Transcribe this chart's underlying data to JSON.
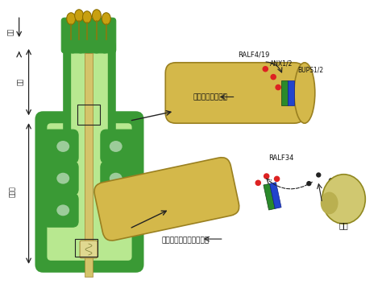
{
  "bg_color": "#ffffff",
  "pistil": {
    "body_color": "#3a9a35",
    "body_light_color": "#7ac060",
    "inner_color": "#b8e890",
    "style_color": "#b8e890",
    "stigma_color": "#3a9a35",
    "ovary_color": "#7ac060",
    "tube_color": "#d4c46a"
  },
  "pollen_tube_color": "#d4b84a",
  "labels": {
    "zhutou": "柱头",
    "huazhu": "花柱",
    "zifangjing": "子房室",
    "ralf419": "RALF4/19",
    "anx12": "ANX1/2",
    "bups12": "BUPS1/2",
    "label1": "花粉管维持完整性",
    "ralf34": "RALF34",
    "label2": "花粉管爆炸、释放精细胞",
    "embryo": "胚囊"
  },
  "arrow_color": "#222222",
  "red_dot_color": "#dd2222",
  "black_dot_color": "#222222",
  "green_rect_color": "#2a7a2a",
  "blue_rect_color": "#2244aa"
}
